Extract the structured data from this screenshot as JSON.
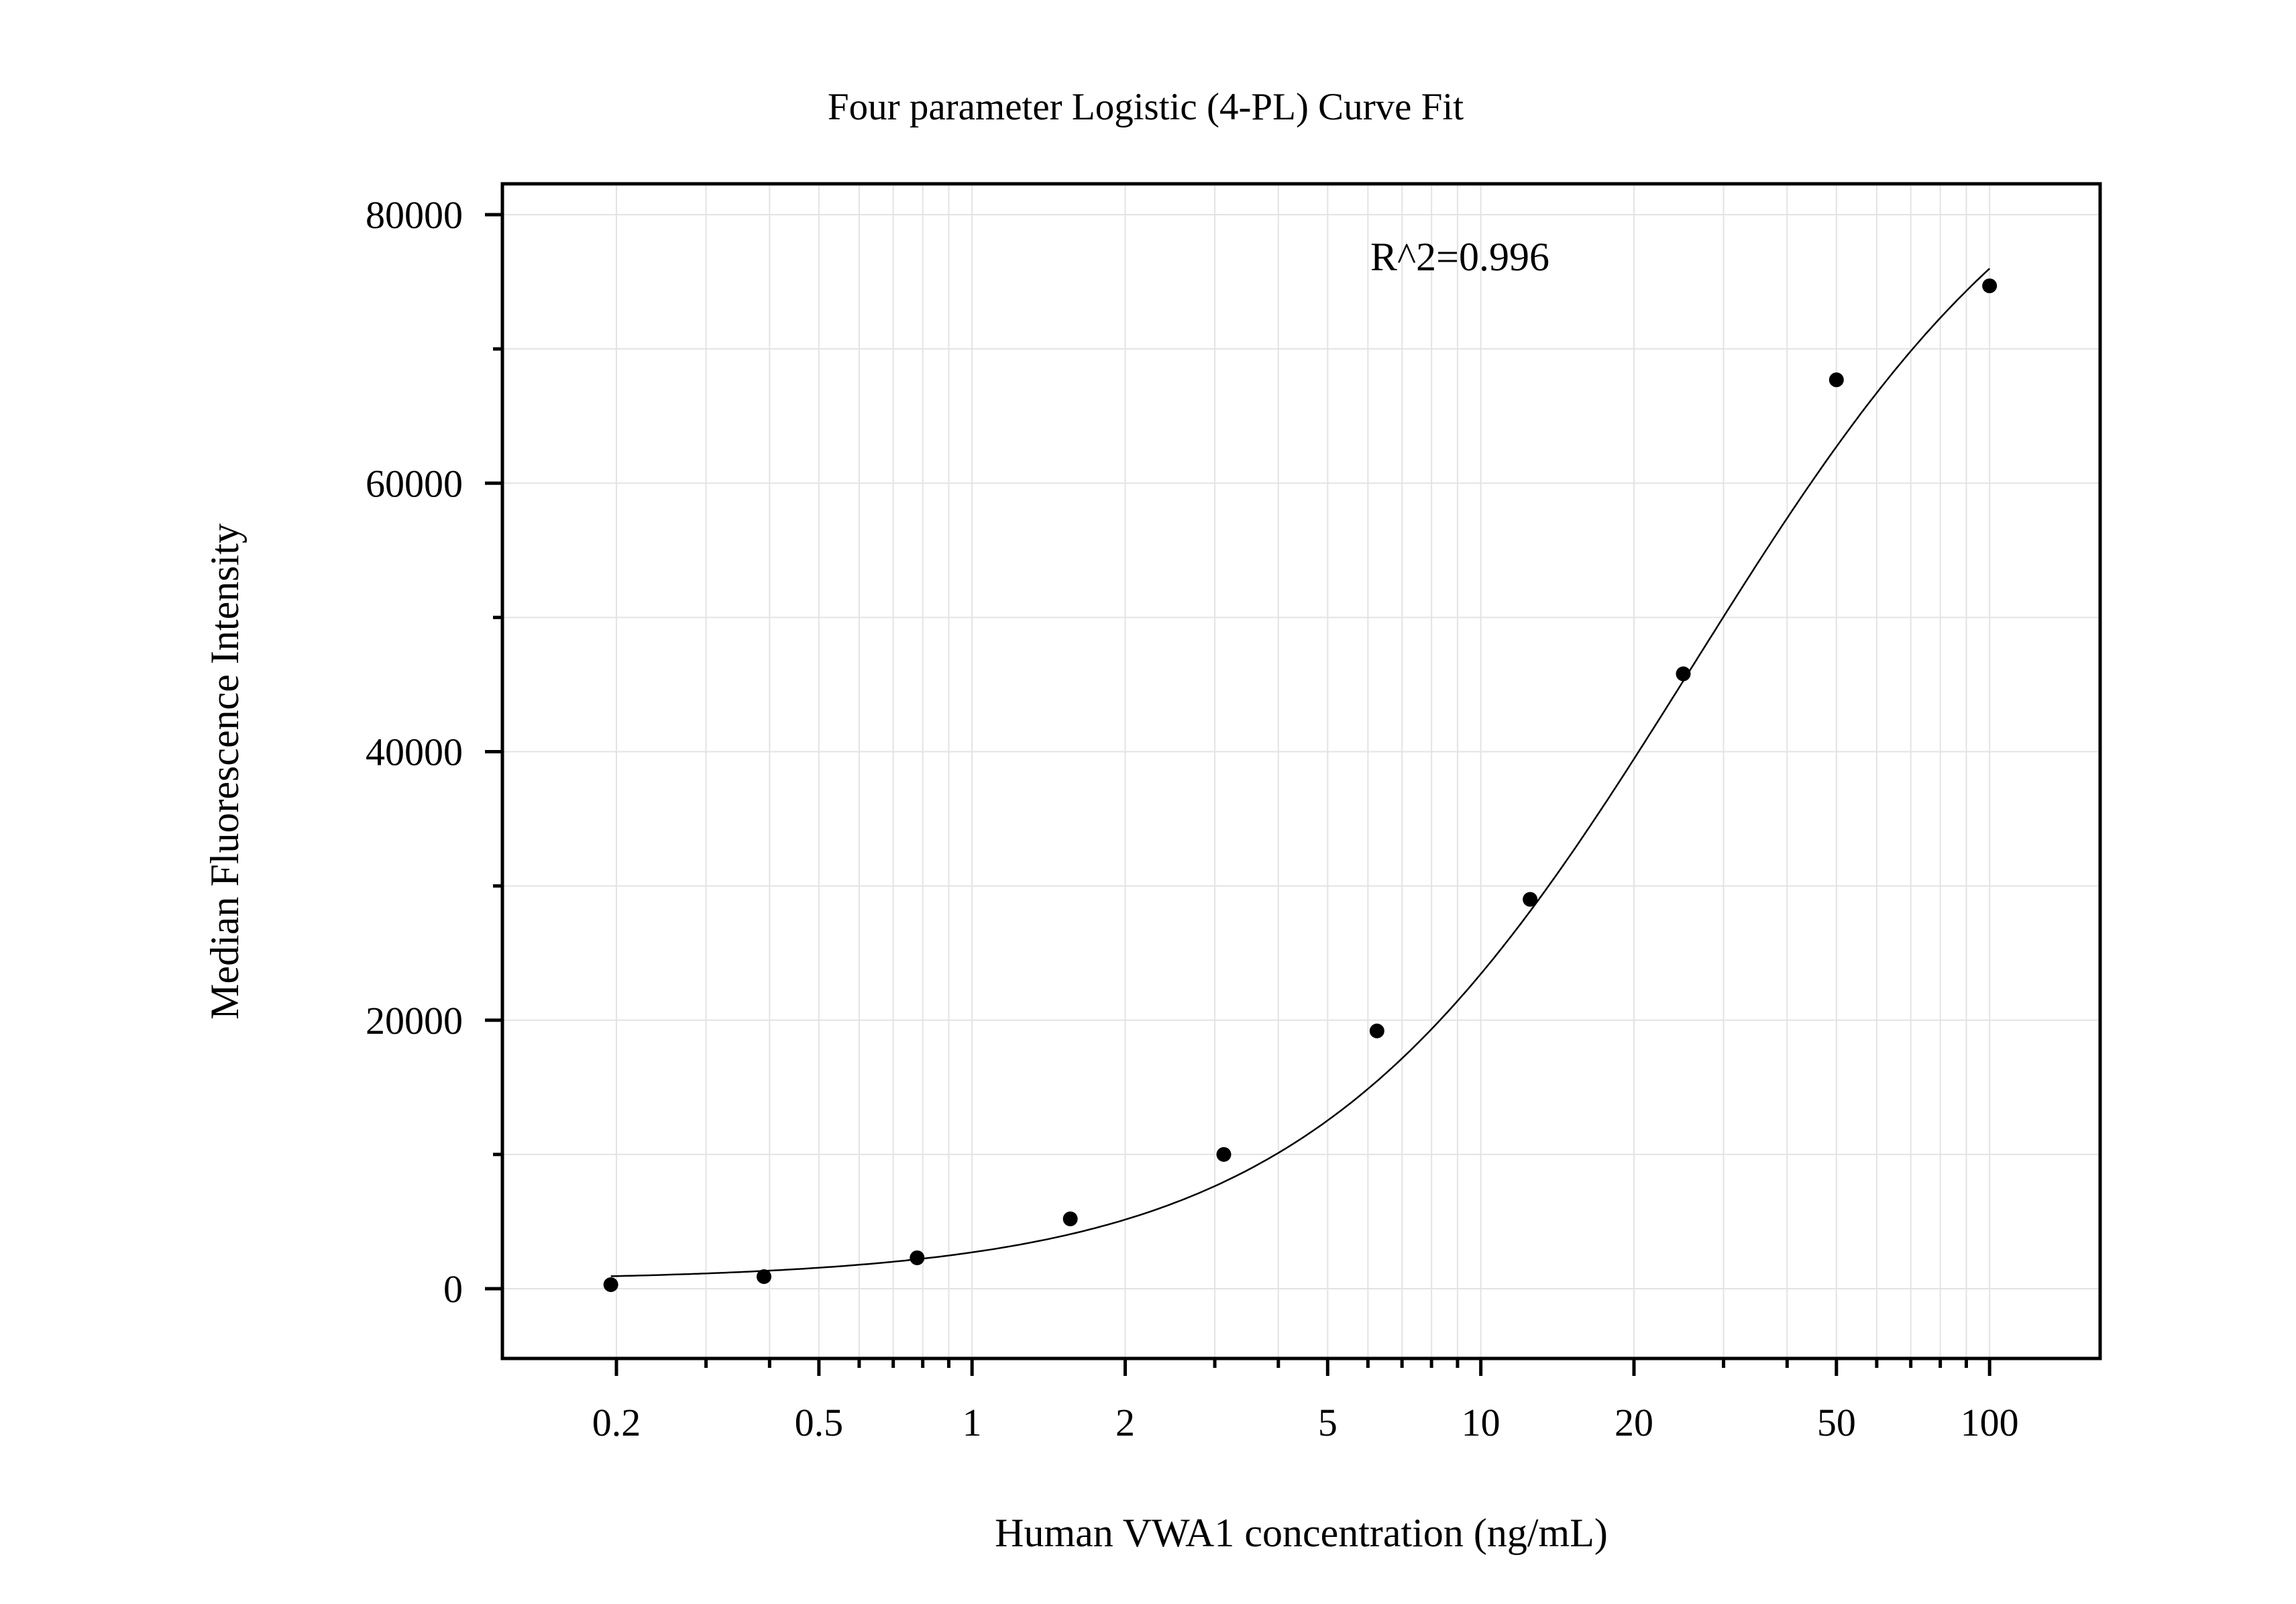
{
  "chart_data": {
    "type": "scatter",
    "title": "Four parameter Logistic (4-PL) Curve Fit",
    "xlabel": "Human VWA1 concentration (ng/mL)",
    "ylabel": "Median Fluorescence Intensity",
    "x_scale": "log",
    "xlim": [
      0.1,
      200
    ],
    "ylim": [
      -5000,
      82500
    ],
    "x_ticks": [
      0.2,
      0.5,
      1,
      2,
      5,
      10,
      20,
      50,
      100
    ],
    "x_tick_labels": [
      "0.2",
      "0.5",
      "1",
      "2",
      "5",
      "10",
      "20",
      "50",
      "100"
    ],
    "y_ticks": [
      0,
      20000,
      40000,
      60000,
      80000
    ],
    "y_tick_labels": [
      "0",
      "20000",
      "40000",
      "60000",
      "80000"
    ],
    "grid": true,
    "annotation": "R^2=0.996",
    "points": {
      "x": [
        0.195,
        0.39,
        0.78,
        1.56,
        3.125,
        6.25,
        12.5,
        25,
        50,
        100
      ],
      "y": [
        300,
        900,
        2300,
        5200,
        10000,
        19200,
        29000,
        45800,
        67700,
        74700
      ]
    },
    "fit_curve": {
      "model": "4PL",
      "bottom": 600,
      "top": 92000,
      "ec50": 26,
      "hill": 1.15,
      "x_range": [
        0.195,
        100
      ]
    },
    "colors": {
      "points": "#000000",
      "curve": "#000000",
      "grid": "#e3e3e3"
    }
  }
}
